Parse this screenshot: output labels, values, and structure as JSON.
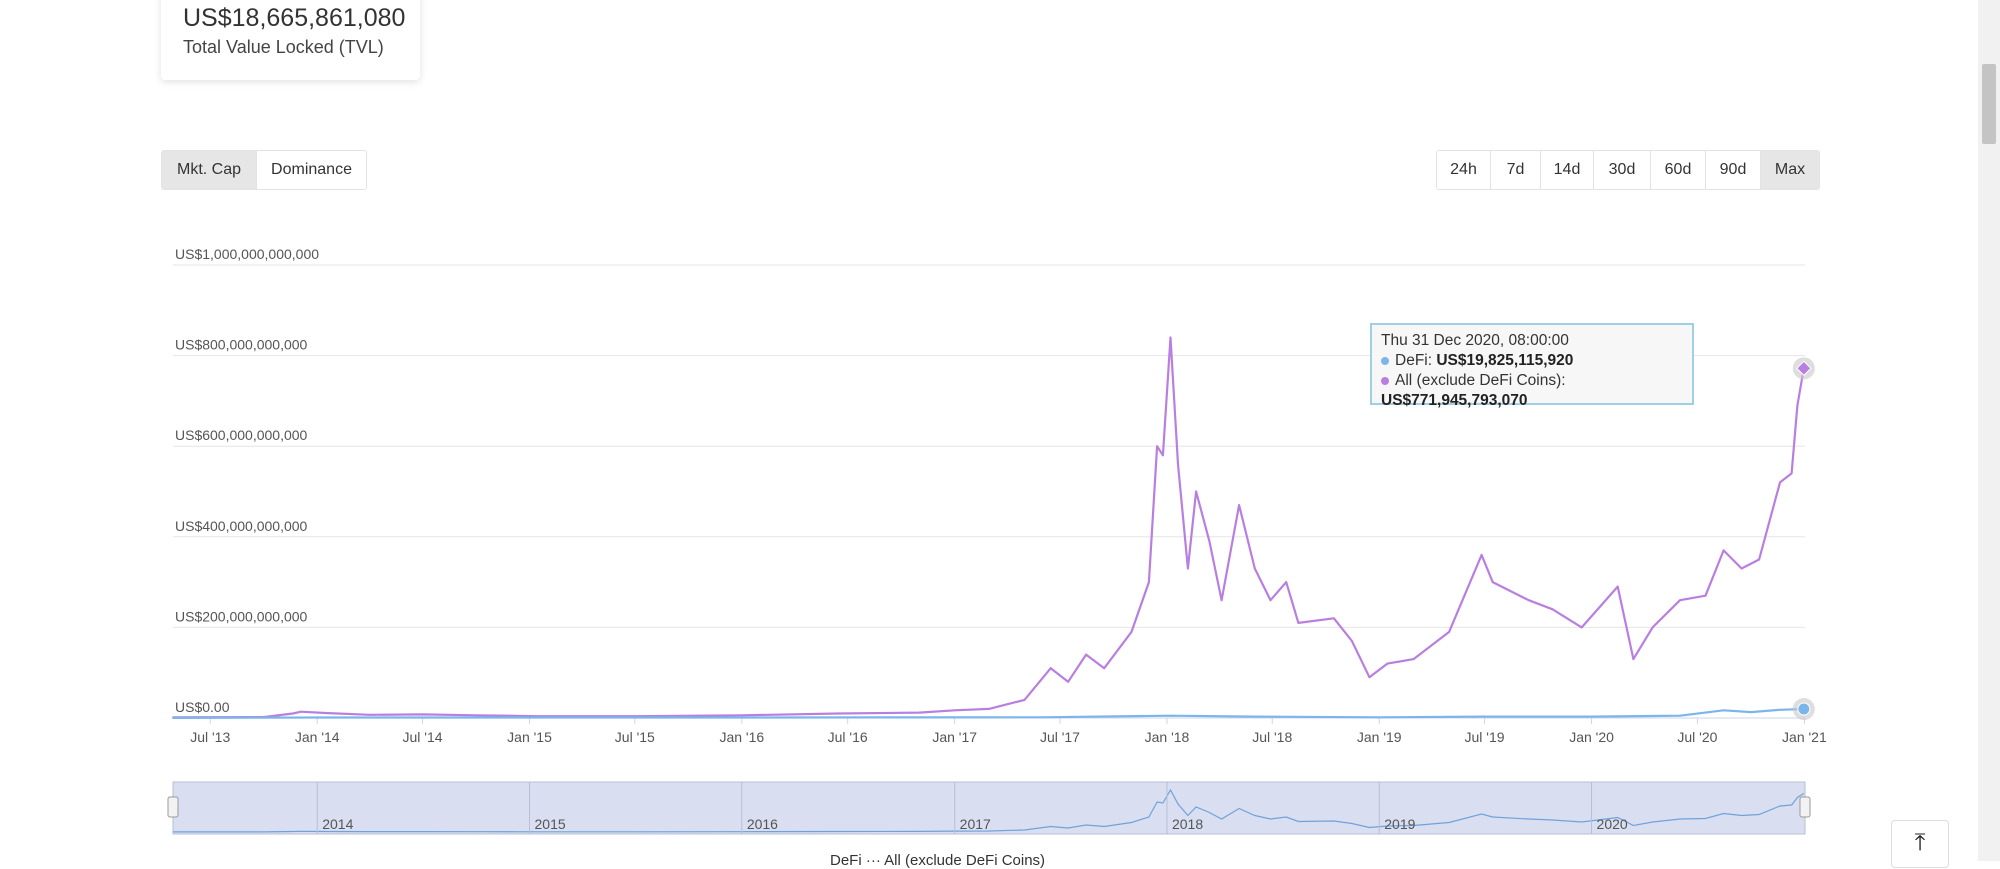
{
  "tvl": {
    "value": "US$18,665,861,080",
    "label": "Total Value Locked (TVL)"
  },
  "view_toggle": [
    {
      "label": "Mkt. Cap",
      "active": true
    },
    {
      "label": "Dominance",
      "active": false
    }
  ],
  "range_buttons": [
    {
      "label": "24h",
      "active": false
    },
    {
      "label": "7d",
      "active": false
    },
    {
      "label": "14d",
      "active": false
    },
    {
      "label": "30d",
      "active": false
    },
    {
      "label": "60d",
      "active": false
    },
    {
      "label": "90d",
      "active": false
    },
    {
      "label": "Max",
      "active": true
    }
  ],
  "tooltip": {
    "date": "Thu 31 Dec 2020, 08:00:00",
    "defi_label": "DeFi: ",
    "defi_value": "US$19,825,115,920",
    "all_label": "All (exclude DeFi Coins): ",
    "all_value": "US$771,945,793,070"
  },
  "legend_peek": "DeFi  ···  All (exclude DeFi Coins)",
  "icons": {
    "back_to_top": "arrow-up-to-line-icon"
  },
  "chart_data": {
    "type": "line",
    "y_ticks": [
      "US$0.00",
      "US$200,000,000,000",
      "US$400,000,000,000",
      "US$600,000,000,000",
      "US$800,000,000,000",
      "US$1,000,000,000,000"
    ],
    "ylim": [
      0,
      1000000000000
    ],
    "x_ticks": [
      "Jul '13",
      "Jan '14",
      "Jul '14",
      "Jan '15",
      "Jul '15",
      "Jan '16",
      "Jul '16",
      "Jan '17",
      "Jul '17",
      "Jan '18",
      "Jul '18",
      "Jan '19",
      "Jul '19",
      "Jan '20",
      "Jul '20",
      "Jan '21"
    ],
    "x_tick_dates": [
      "2013-07-01",
      "2014-01-01",
      "2014-07-01",
      "2015-01-01",
      "2015-07-01",
      "2016-01-01",
      "2016-07-01",
      "2017-01-01",
      "2017-07-01",
      "2018-01-01",
      "2018-07-01",
      "2019-01-01",
      "2019-07-01",
      "2020-01-01",
      "2020-07-01",
      "2021-01-01"
    ],
    "navigator_labels": [
      "2014",
      "2015",
      "2016",
      "2017",
      "2018",
      "2019",
      "2020"
    ],
    "navigator_dates": [
      "2014-01-01",
      "2015-01-01",
      "2016-01-01",
      "2017-01-01",
      "2018-01-01",
      "2019-01-01",
      "2020-01-01"
    ],
    "grid": true,
    "series": [
      {
        "name": "All (exclude DeFi Coins)",
        "color": "#b97fe0",
        "points": [
          [
            "2013-04-28",
            1500000000.0
          ],
          [
            "2013-10-01",
            2000000000.0
          ],
          [
            "2013-11-20",
            10000000000.0
          ],
          [
            "2013-12-04",
            14000000000.0
          ],
          [
            "2014-01-15",
            11000000000.0
          ],
          [
            "2014-04-01",
            7000000000.0
          ],
          [
            "2014-07-01",
            8000000000.0
          ],
          [
            "2014-10-01",
            6000000000.0
          ],
          [
            "2015-01-15",
            4000000000.0
          ],
          [
            "2015-07-01",
            4000000000.0
          ],
          [
            "2016-01-01",
            6000000000.0
          ],
          [
            "2016-06-15",
            10000000000.0
          ],
          [
            "2016-11-01",
            12000000000.0
          ],
          [
            "2017-01-01",
            17000000000.0
          ],
          [
            "2017-03-01",
            20000000000.0
          ],
          [
            "2017-05-01",
            40000000000.0
          ],
          [
            "2017-06-15",
            110000000000.0
          ],
          [
            "2017-07-15",
            80000000000.0
          ],
          [
            "2017-08-15",
            140000000000.0
          ],
          [
            "2017-09-15",
            110000000000.0
          ],
          [
            "2017-11-01",
            190000000000.0
          ],
          [
            "2017-12-01",
            300000000000.0
          ],
          [
            "2017-12-15",
            600000000000.0
          ],
          [
            "2017-12-25",
            580000000000.0
          ],
          [
            "2018-01-07",
            840000000000.0
          ],
          [
            "2018-01-20",
            560000000000.0
          ],
          [
            "2018-02-06",
            330000000000.0
          ],
          [
            "2018-02-20",
            500000000000.0
          ],
          [
            "2018-03-15",
            390000000000.0
          ],
          [
            "2018-04-05",
            260000000000.0
          ],
          [
            "2018-05-05",
            470000000000.0
          ],
          [
            "2018-06-01",
            330000000000.0
          ],
          [
            "2018-06-28",
            260000000000.0
          ],
          [
            "2018-07-25",
            300000000000.0
          ],
          [
            "2018-08-15",
            210000000000.0
          ],
          [
            "2018-10-15",
            220000000000.0
          ],
          [
            "2018-11-15",
            170000000000.0
          ],
          [
            "2018-12-15",
            90000000000.0
          ],
          [
            "2019-01-15",
            120000000000.0
          ],
          [
            "2019-03-01",
            130000000000.0
          ],
          [
            "2019-05-01",
            190000000000.0
          ],
          [
            "2019-06-26",
            360000000000.0
          ],
          [
            "2019-07-15",
            300000000000.0
          ],
          [
            "2019-09-15",
            260000000000.0
          ],
          [
            "2019-10-26",
            240000000000.0
          ],
          [
            "2019-12-15",
            200000000000.0
          ],
          [
            "2020-02-15",
            290000000000.0
          ],
          [
            "2020-03-13",
            130000000000.0
          ],
          [
            "2020-04-15",
            200000000000.0
          ],
          [
            "2020-06-01",
            260000000000.0
          ],
          [
            "2020-07-15",
            270000000000.0
          ],
          [
            "2020-08-15",
            370000000000.0
          ],
          [
            "2020-09-15",
            330000000000.0
          ],
          [
            "2020-10-15",
            350000000000.0
          ],
          [
            "2020-11-20",
            520000000000.0
          ],
          [
            "2020-12-10",
            540000000000.0
          ],
          [
            "2020-12-20",
            690000000000.0
          ],
          [
            "2020-12-31",
            771900000000.0
          ]
        ]
      },
      {
        "name": "DeFi",
        "color": "#7cb5ec",
        "points": [
          [
            "2013-04-28",
            200000000.0
          ],
          [
            "2014-01-01",
            1000000000.0
          ],
          [
            "2016-01-01",
            1000000000.0
          ],
          [
            "2017-06-01",
            1500000000.0
          ],
          [
            "2018-01-07",
            5000000000.0
          ],
          [
            "2018-06-01",
            3000000000.0
          ],
          [
            "2019-01-01",
            1500000000.0
          ],
          [
            "2019-07-01",
            3000000000.0
          ],
          [
            "2020-01-01",
            3000000000.0
          ],
          [
            "2020-06-01",
            5000000000.0
          ],
          [
            "2020-08-15",
            17000000000.0
          ],
          [
            "2020-10-01",
            13000000000.0
          ],
          [
            "2020-11-20",
            18000000000.0
          ],
          [
            "2020-12-31",
            19800000000.0
          ]
        ]
      }
    ]
  }
}
